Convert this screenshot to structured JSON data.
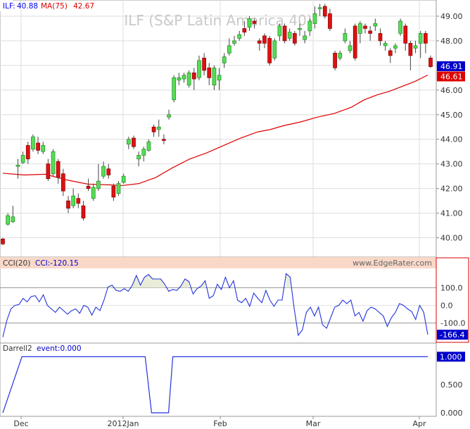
{
  "chart_data": [
    {
      "type": "candlestick",
      "title": "ILF (S&P Latin America 40)",
      "legend": [
        {
          "name": "ILF:",
          "value": "40.88",
          "color": "#0000ee"
        },
        {
          "name": "MA(75)",
          "value": "42.67",
          "color": "#dd0000"
        }
      ],
      "x_labels": [
        "Dec",
        "2012Jan",
        "Feb",
        "Mar",
        "Apr"
      ],
      "y_ticks": [
        "40.00",
        "41.00",
        "42.00",
        "43.00",
        "44.00",
        "45.00",
        "46.00",
        "47.00",
        "48.00",
        "49.00"
      ],
      "ylim": [
        39.3,
        49.6
      ],
      "price_labels": [
        {
          "value": "46.91",
          "color": "#0000cc"
        },
        {
          "value": "46.61",
          "color": "#dd0000"
        }
      ],
      "candles": [
        [
          39.95,
          39.75,
          40.0,
          39.7
        ],
        [
          40.55,
          40.9,
          41.0,
          40.5
        ],
        [
          40.65,
          40.85,
          41.3,
          40.6
        ],
        [
          42.9,
          42.95,
          43.2,
          42.4
        ],
        [
          43.05,
          43.35,
          43.5,
          43.0
        ],
        [
          43.75,
          43.2,
          43.9,
          43.0
        ],
        [
          43.6,
          44.1,
          44.2,
          43.5
        ],
        [
          43.85,
          43.55,
          44.1,
          43.4
        ],
        [
          43.5,
          43.75,
          43.9,
          43.4
        ],
        [
          43.0,
          42.4,
          43.2,
          42.3
        ],
        [
          42.6,
          43.5,
          43.6,
          42.5
        ],
        [
          43.1,
          42.45,
          43.2,
          42.2
        ],
        [
          42.6,
          41.9,
          42.8,
          41.7
        ],
        [
          41.5,
          41.2,
          41.7,
          41.0
        ],
        [
          41.3,
          41.7,
          42.0,
          41.2
        ],
        [
          41.6,
          41.4,
          41.8,
          41.2
        ],
        [
          41.3,
          40.8,
          41.5,
          40.7
        ],
        [
          42.1,
          42.0,
          42.4,
          41.9
        ],
        [
          41.6,
          42.05,
          42.2,
          41.5
        ],
        [
          42.0,
          42.3,
          43.0,
          41.9
        ],
        [
          42.5,
          42.9,
          43.1,
          42.4
        ],
        [
          42.8,
          42.55,
          43.0,
          42.4
        ],
        [
          42.1,
          41.65,
          42.2,
          41.5
        ],
        [
          41.8,
          42.2,
          42.3,
          41.7
        ],
        [
          42.25,
          42.5,
          42.6,
          42.2
        ],
        [
          43.8,
          44.0,
          44.1,
          43.6
        ],
        [
          44.05,
          43.7,
          44.15,
          43.6
        ],
        [
          43.2,
          43.35,
          43.5,
          42.9
        ],
        [
          43.35,
          43.6,
          43.7,
          43.1
        ],
        [
          43.55,
          43.9,
          44.0,
          43.5
        ],
        [
          44.5,
          44.3,
          44.6,
          44.1
        ],
        [
          44.4,
          44.5,
          44.8,
          44.1
        ],
        [
          44.0,
          43.95,
          44.2,
          43.8
        ],
        [
          44.9,
          45.0,
          45.2,
          44.8
        ],
        [
          45.6,
          46.5,
          46.6,
          45.5
        ],
        [
          46.4,
          46.5,
          46.7,
          46.2
        ],
        [
          46.45,
          46.6,
          46.7,
          46.3
        ],
        [
          46.2,
          46.7,
          46.8,
          46.1
        ],
        [
          46.7,
          46.45,
          46.9,
          46.0
        ],
        [
          46.5,
          47.2,
          47.4,
          46.4
        ],
        [
          47.3,
          46.8,
          47.5,
          46.6
        ],
        [
          46.9,
          46.5,
          47.1,
          46.2
        ],
        [
          46.2,
          46.9,
          47.0,
          46.0
        ],
        [
          46.4,
          46.6,
          46.9,
          46.0
        ],
        [
          47.1,
          47.35,
          47.5,
          46.9
        ],
        [
          47.5,
          47.8,
          48.1,
          47.4
        ],
        [
          47.9,
          48.0,
          48.2,
          47.8
        ],
        [
          48.1,
          48.25,
          48.4,
          48.0
        ],
        [
          48.5,
          48.35,
          48.8,
          48.2
        ],
        [
          48.55,
          48.9,
          49.0,
          48.4
        ],
        [
          48.8,
          48.7,
          48.9,
          48.5
        ],
        [
          48.0,
          47.9,
          48.1,
          47.6
        ],
        [
          48.2,
          47.9,
          48.3,
          47.7
        ],
        [
          48.1,
          47.1,
          48.2,
          47.0
        ],
        [
          47.3,
          48.0,
          48.1,
          47.2
        ],
        [
          48.2,
          48.6,
          48.7,
          48.0
        ],
        [
          48.6,
          48.0,
          48.7,
          47.9
        ],
        [
          48.1,
          48.35,
          48.5,
          48.0
        ],
        [
          48.3,
          47.9,
          48.4,
          47.8
        ],
        [
          48.5,
          48.5,
          48.7,
          48.2
        ],
        [
          48.05,
          48.2,
          48.4,
          47.9
        ],
        [
          48.4,
          48.8,
          48.9,
          48.2
        ],
        [
          48.7,
          49.1,
          49.4,
          48.5
        ],
        [
          49.3,
          49.35,
          49.5,
          49.0
        ],
        [
          49.4,
          49.0,
          49.5,
          48.9
        ],
        [
          49.1,
          48.5,
          49.3,
          48.4
        ],
        [
          47.5,
          46.9,
          47.6,
          46.8
        ],
        [
          47.3,
          47.5,
          47.6,
          47.2
        ],
        [
          48.0,
          48.3,
          48.5,
          47.9
        ],
        [
          47.6,
          47.8,
          48.0,
          47.5
        ],
        [
          48.6,
          47.3,
          48.7,
          47.2
        ],
        [
          48.3,
          48.7,
          48.8,
          47.9
        ],
        [
          48.6,
          48.5,
          48.7,
          48.3
        ],
        [
          48.4,
          48.3,
          48.6,
          48.0
        ],
        [
          48.6,
          48.7,
          48.9,
          48.4
        ],
        [
          48.3,
          48.0,
          48.5,
          47.8
        ],
        [
          47.8,
          47.9,
          48.0,
          47.6
        ],
        [
          47.6,
          47.4,
          47.7,
          47.1
        ],
        [
          47.7,
          47.8,
          47.9,
          47.5
        ],
        [
          48.3,
          48.8,
          48.9,
          48.2
        ],
        [
          48.6,
          47.9,
          48.7,
          47.6
        ],
        [
          47.9,
          47.4,
          48.0,
          46.8
        ],
        [
          47.7,
          47.8,
          48.0,
          47.5
        ],
        [
          47.9,
          48.3,
          48.4,
          47.3
        ],
        [
          48.3,
          47.9,
          48.4,
          47.5
        ],
        [
          47.3,
          46.95,
          47.4,
          46.9
        ]
      ],
      "ma": [
        [
          0,
          42.62
        ],
        [
          5,
          42.55
        ],
        [
          10,
          42.58
        ],
        [
          15,
          42.35
        ],
        [
          20,
          42.18
        ],
        [
          25,
          42.15
        ],
        [
          28,
          42.12
        ],
        [
          32,
          42.2
        ],
        [
          36,
          42.45
        ],
        [
          40,
          42.85
        ],
        [
          44,
          43.2
        ],
        [
          48,
          43.45
        ],
        [
          52,
          43.75
        ],
        [
          56,
          44.05
        ],
        [
          60,
          44.3
        ],
        [
          63,
          44.4
        ],
        [
          66,
          44.55
        ],
        [
          70,
          44.7
        ],
        [
          74,
          44.9
        ],
        [
          78,
          45.05
        ],
        [
          82,
          45.3
        ],
        [
          85,
          45.6
        ],
        [
          88,
          45.8
        ],
        [
          91,
          45.95
        ],
        [
          94,
          46.15
        ],
        [
          97,
          46.35
        ],
        [
          100,
          46.61
        ]
      ]
    },
    {
      "type": "line",
      "title": "CCI(20)",
      "readout": "CCI:-120.15",
      "watermark": "www.EdgeRater.com",
      "y_ticks": [
        "100.0",
        "0.0",
        "-100.0"
      ],
      "ylim": [
        -210,
        210
      ],
      "reference_lines": [
        100,
        -100
      ],
      "last_value_label": "-166.4",
      "values": [
        -180,
        -85,
        -20,
        0,
        5,
        40,
        20,
        50,
        55,
        20,
        60,
        0,
        -20,
        -40,
        -10,
        -30,
        -50,
        -30,
        -20,
        -45,
        0,
        -10,
        -55,
        -10,
        -30,
        30,
        105,
        115,
        85,
        80,
        95,
        80,
        115,
        170,
        115,
        160,
        175,
        150,
        150,
        150,
        120,
        80,
        90,
        85,
        110,
        150,
        135,
        65,
        95,
        110,
        140,
        40,
        55,
        120,
        90,
        160,
        100,
        140,
        30,
        15,
        40,
        -5,
        70,
        40,
        15,
        85,
        30,
        -5,
        30,
        30,
        180,
        160,
        -20,
        -170,
        -140,
        -40,
        -10,
        -60,
        -10,
        -110,
        -130,
        -70,
        -10,
        0,
        30,
        10,
        30,
        -60,
        -40,
        -90,
        -30,
        -10,
        -20,
        -40,
        -60,
        -120,
        -70,
        -40,
        10,
        0,
        -20,
        -35,
        -80,
        0,
        -40,
        -166.4
      ]
    },
    {
      "type": "line",
      "title": "Darrell2",
      "readout": "event:0.000",
      "y_ticks": [
        "1.000",
        "0.500",
        "0.000"
      ],
      "ylim": [
        -0.05,
        1.08
      ],
      "last_value_label": "1.000",
      "values": [
        [
          0.0,
          0
        ],
        [
          0.045,
          1
        ],
        [
          0.335,
          1
        ],
        [
          0.35,
          0
        ],
        [
          0.39,
          0
        ],
        [
          0.4,
          1
        ],
        [
          1.0,
          1
        ]
      ]
    }
  ]
}
